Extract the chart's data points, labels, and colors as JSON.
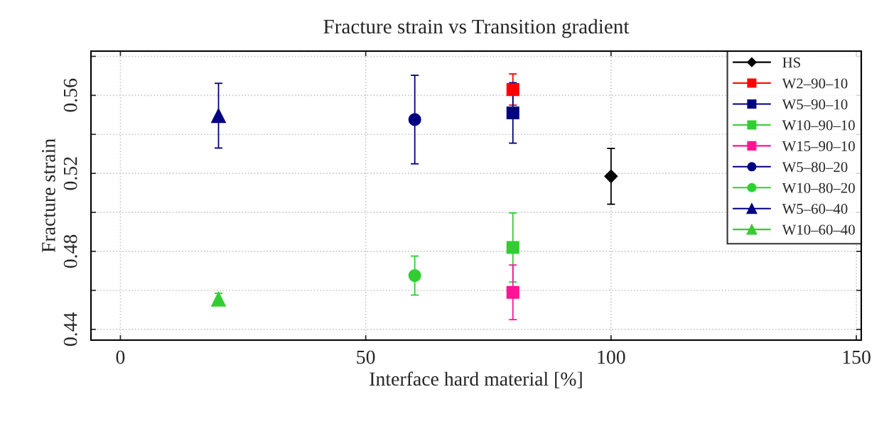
{
  "chart_data": {
    "type": "scatter",
    "title": "Fracture strain vs Transition gradient",
    "xlabel": "Interface hard material [%]",
    "ylabel": "Fracture strain",
    "xlim": [
      -6,
      151
    ],
    "xticks": [
      0,
      50,
      100,
      150
    ],
    "ylim": [
      0.4345,
      0.5827
    ],
    "yticks": [
      0.44,
      {
        "value": 0.46,
        "label": null
      },
      0.48,
      {
        "value": 0.5,
        "label": null
      },
      0.52,
      {
        "value": 0.54,
        "label": null
      },
      0.56,
      {
        "value": 0.58,
        "label": null
      }
    ],
    "grid": true,
    "legend": "top right",
    "series": [
      {
        "name": "HS",
        "color": "#000000",
        "marker": "diamond",
        "x": [
          100
        ],
        "values": [
          0.5185
        ],
        "errors": [
          0.0143
        ]
      },
      {
        "name": "W2–90–10",
        "color": "#ff0000",
        "marker": "square",
        "x": [
          80
        ],
        "values": [
          0.563
        ],
        "errors": [
          0.008
        ]
      },
      {
        "name": "W5–90–10",
        "color": "#000080",
        "marker": "square",
        "x": [
          80
        ],
        "values": [
          0.551
        ],
        "errors": [
          0.0155
        ]
      },
      {
        "name": "W10–90–10",
        "color": "#32cd32",
        "marker": "square",
        "x": [
          80
        ],
        "values": [
          0.482
        ],
        "errors": [
          0.0177
        ]
      },
      {
        "name": "W15–90–10",
        "color": "#ff1493",
        "marker": "square",
        "x": [
          80
        ],
        "values": [
          0.459
        ],
        "errors": [
          0.014
        ]
      },
      {
        "name": "W5–80–20",
        "color": "#000080",
        "marker": "circle",
        "x": [
          60
        ],
        "values": [
          0.5476
        ],
        "errors": [
          0.0227
        ]
      },
      {
        "name": "W10–80–20",
        "color": "#32cd32",
        "marker": "circle",
        "x": [
          60
        ],
        "values": [
          0.4676
        ],
        "errors": [
          0.01
        ]
      },
      {
        "name": "W5–60–40",
        "color": "#000080",
        "marker": "triangle",
        "x": [
          20
        ],
        "values": [
          0.5496
        ],
        "errors": [
          0.0166
        ]
      },
      {
        "name": "W10–60–40",
        "color": "#32cd32",
        "marker": "triangle",
        "x": [
          20
        ],
        "values": [
          0.4555
        ],
        "errors": [
          0.003
        ]
      }
    ]
  }
}
